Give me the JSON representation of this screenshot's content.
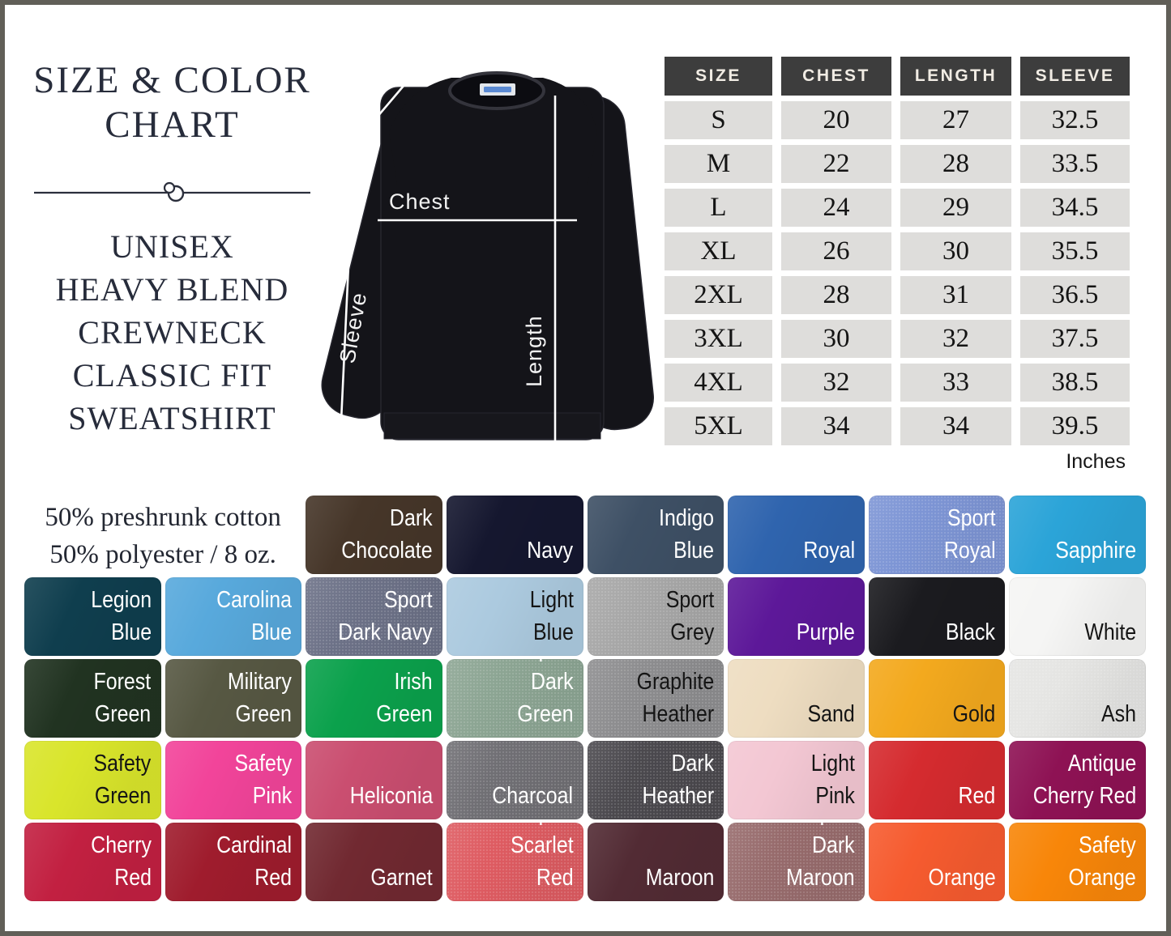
{
  "page": {
    "title_line1": "SIZE & COLOR",
    "title_line2": "CHART",
    "subtitle_lines": [
      "UNISEX",
      "HEAVY BLEND",
      "CREWNECK",
      "CLASSIC FIT",
      "SWEATSHIRT"
    ]
  },
  "fabric_info": {
    "line1": "50% preshrunk cotton",
    "line2": "50% polyester / 8 oz."
  },
  "diagram": {
    "chest_label": "Chest",
    "sleeve_label": "Sleeve",
    "length_label": "Length"
  },
  "size_table": {
    "columns": [
      "SIZE",
      "CHEST",
      "LENGTH",
      "SLEEVE"
    ],
    "rows": [
      [
        "S",
        "20",
        "27",
        "32.5"
      ],
      [
        "M",
        "22",
        "28",
        "33.5"
      ],
      [
        "L",
        "24",
        "29",
        "34.5"
      ],
      [
        "XL",
        "26",
        "30",
        "35.5"
      ],
      [
        "2XL",
        "28",
        "31",
        "36.5"
      ],
      [
        "3XL",
        "30",
        "32",
        "37.5"
      ],
      [
        "4XL",
        "32",
        "33",
        "38.5"
      ],
      [
        "5XL",
        "34",
        "34",
        "39.5"
      ]
    ],
    "unit_note": "Inches",
    "header_bg": "#3d3d3d",
    "cell_bg": "#dedddb"
  },
  "color_chart": {
    "rows": [
      [
        {
          "name": "Dark Chocolate",
          "label": "Dark\nChocolate",
          "hex": "#463629",
          "text": "light",
          "heather": false
        },
        {
          "name": "Navy",
          "label": "Navy",
          "hex": "#15172f",
          "text": "light",
          "heather": false
        },
        {
          "name": "Indigo Blue",
          "label": "Indigo\nBlue",
          "hex": "#3e5065",
          "text": "light",
          "heather": false
        },
        {
          "name": "Royal",
          "label": "Royal",
          "hex": "#2f64ae",
          "text": "light",
          "heather": false
        },
        {
          "name": "Heather Sport Royal",
          "label": "Heather\nSport Royal",
          "hex": "#7d95d5",
          "text": "light",
          "heather": true
        },
        {
          "name": "Sapphire",
          "label": "Sapphire",
          "hex": "#2ba4d8",
          "text": "light",
          "heather": false
        }
      ],
      [
        {
          "name": "Legion Blue",
          "label": "Legion\nBlue",
          "hex": "#0f3e4e",
          "text": "light",
          "heather": false
        },
        {
          "name": "Carolina Blue",
          "label": "Carolina\nBlue",
          "hex": "#58a9dc",
          "text": "light",
          "heather": false
        },
        {
          "name": "Heather Sport Dark Navy",
          "label": "Heather Sport\nDark Navy",
          "hex": "#6c7187",
          "text": "light",
          "heather": true
        },
        {
          "name": "Light Blue",
          "label": "Light\nBlue",
          "hex": "#accadf",
          "text": "dark",
          "heather": false
        },
        {
          "name": "Sport Grey",
          "label": "Sport\nGrey",
          "hex": "#a7a7a7",
          "text": "dark",
          "heather": true
        },
        {
          "name": "Purple",
          "label": "Purple",
          "hex": "#5d1899",
          "text": "light",
          "heather": false
        },
        {
          "name": "Black",
          "label": "Black",
          "hex": "#1b1b1f",
          "text": "light",
          "heather": false
        },
        {
          "name": "White",
          "label": "White",
          "hex": "#f5f5f4",
          "text": "dark",
          "heather": false
        }
      ],
      [
        {
          "name": "Forest Green",
          "label": "Forest\nGreen",
          "hex": "#213321",
          "text": "light",
          "heather": false
        },
        {
          "name": "Military Green",
          "label": "Military\nGreen",
          "hex": "#575843",
          "text": "light",
          "heather": false
        },
        {
          "name": "Irish Green",
          "label": "Irish\nGreen",
          "hex": "#0ba14c",
          "text": "light",
          "heather": false
        },
        {
          "name": "Heather Sport Dark Green",
          "label": "Heather Sport\nDark Green",
          "hex": "#8ca593",
          "text": "light",
          "heather": true
        },
        {
          "name": "Graphite Heather",
          "label": "Graphite\nHeather",
          "hex": "#8d8d8f",
          "text": "dark",
          "heather": true
        },
        {
          "name": "Sand",
          "label": "Sand",
          "hex": "#eeddc1",
          "text": "dark",
          "heather": false
        },
        {
          "name": "Gold",
          "label": "Gold",
          "hex": "#f3a91e",
          "text": "dark",
          "heather": false
        },
        {
          "name": "Ash",
          "label": "Ash",
          "hex": "#e5e5e3",
          "text": "dark",
          "heather": true
        }
      ],
      [
        {
          "name": "Safety Green",
          "label": "Safety\nGreen",
          "hex": "#d9e52b",
          "text": "dark",
          "heather": false
        },
        {
          "name": "Safety Pink",
          "label": "Safety\nPink",
          "hex": "#f2449a",
          "text": "light",
          "heather": false
        },
        {
          "name": "Heliconia",
          "label": "Heliconia",
          "hex": "#ca4e70",
          "text": "light",
          "heather": false
        },
        {
          "name": "Charcoal",
          "label": "Charcoal",
          "hex": "#706f74",
          "text": "light",
          "heather": true
        },
        {
          "name": "Dark Heather",
          "label": "Dark\nHeather",
          "hex": "#4b494e",
          "text": "light",
          "heather": true
        },
        {
          "name": "Light Pink",
          "label": "Light\nPink",
          "hex": "#f3c7d3",
          "text": "dark",
          "heather": false
        },
        {
          "name": "Red",
          "label": "Red",
          "hex": "#d52b2f",
          "text": "light",
          "heather": false
        },
        {
          "name": "Antique Cherry Red",
          "label": "Antique\nCherry Red",
          "hex": "#8e1254",
          "text": "light",
          "heather": false
        }
      ],
      [
        {
          "name": "Cherry Red",
          "label": "Cherry\nRed",
          "hex": "#c22041",
          "text": "light",
          "heather": false
        },
        {
          "name": "Cardinal Red",
          "label": "Cardinal\nRed",
          "hex": "#9f1c2d",
          "text": "light",
          "heather": false
        },
        {
          "name": "Garnet",
          "label": "Garnet",
          "hex": "#712931",
          "text": "light",
          "heather": false
        },
        {
          "name": "Heather Sport Scarlet Red",
          "label": "Heather Sport\nScarlet Red",
          "hex": "#de5b61",
          "text": "light",
          "heather": true
        },
        {
          "name": "Maroon",
          "label": "Maroon",
          "hex": "#522b34",
          "text": "light",
          "heather": false
        },
        {
          "name": "Heather Sport Dark Maroon",
          "label": "Heather Sport\nDark Maroon",
          "hex": "#976b6c",
          "text": "light",
          "heather": true
        },
        {
          "name": "Orange",
          "label": "Orange",
          "hex": "#f65b2f",
          "text": "light",
          "heather": false
        },
        {
          "name": "Safety Orange",
          "label": "Safety\nOrange",
          "hex": "#f88609",
          "text": "light",
          "heather": false
        }
      ]
    ]
  },
  "theme": {
    "frame_border": "#615f58",
    "title_color": "#272c3b",
    "shirt_color": "#141419",
    "measure_line_color": "#ffffff"
  }
}
